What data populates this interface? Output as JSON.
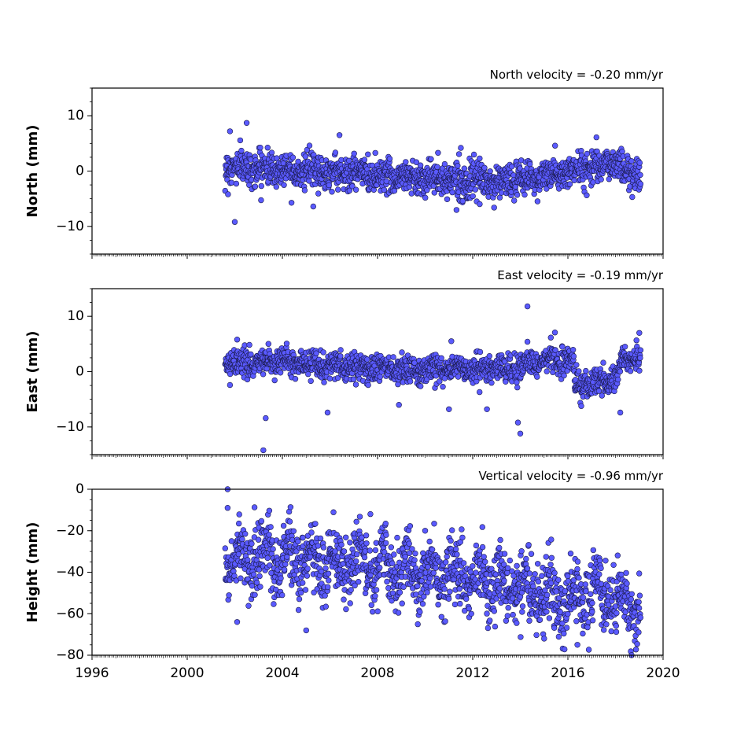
{
  "chart_data": [
    {
      "type": "scatter",
      "title": "North velocity = -0.20 mm/yr",
      "ylabel": "North (mm)",
      "xlim": [
        1996,
        2020
      ],
      "ylim": [
        -15,
        15
      ],
      "yticks": [
        10,
        0,
        -10
      ],
      "ytick_labels": [
        "10",
        "0",
        "−10"
      ],
      "start_year": 2001.6,
      "end_year": 2019.05,
      "series": [
        {
          "trend": [
            [
              2001.6,
              0.8
            ],
            [
              2004,
              0.4
            ],
            [
              2007,
              -0.4
            ],
            [
              2010,
              -1.2
            ],
            [
              2012,
              -1.8
            ],
            [
              2013,
              -2.0
            ],
            [
              2015,
              -1.0
            ],
            [
              2016.3,
              0.0
            ],
            [
              2017,
              1.0
            ],
            [
              2018,
              1.6
            ],
            [
              2018.5,
              0.0
            ],
            [
              2019.05,
              -0.8
            ]
          ],
          "spread": 1.5,
          "outliers": [
            [
              2002.0,
              -9.2
            ],
            [
              2002.5,
              8.7
            ],
            [
              2001.8,
              7.2
            ],
            [
              2006.4,
              6.5
            ],
            [
              2005.3,
              -6.4
            ],
            [
              2012.9,
              -6.6
            ],
            [
              2017.2,
              6.1
            ],
            [
              2011.5,
              4.2
            ]
          ]
        }
      ]
    },
    {
      "type": "scatter",
      "title": "East velocity = -0.19 mm/yr",
      "ylabel": "East (mm)",
      "xlim": [
        1996,
        2020
      ],
      "ylim": [
        -15,
        15
      ],
      "yticks": [
        10,
        0,
        -10
      ],
      "ytick_labels": [
        "10",
        "0",
        "−10"
      ],
      "start_year": 2001.6,
      "end_year": 2019.05,
      "series": [
        {
          "trend": [
            [
              2001.6,
              1.6
            ],
            [
              2004,
              1.8
            ],
            [
              2006,
              1.2
            ],
            [
              2008,
              0.6
            ],
            [
              2010,
              0.4
            ],
            [
              2012,
              0.5
            ],
            [
              2014,
              0.8
            ],
            [
              2015,
              2.2
            ],
            [
              2016.2,
              2.0
            ],
            [
              2016.3,
              -2.4
            ],
            [
              2017,
              -2.0
            ],
            [
              2018.1,
              -1.4
            ],
            [
              2018.2,
              2.0
            ],
            [
              2019.05,
              2.5
            ]
          ],
          "spread": 1.2,
          "outliers": [
            [
              2003.2,
              -14.2
            ],
            [
              2014.3,
              11.8
            ],
            [
              2014.0,
              -11.2
            ],
            [
              2003.3,
              -8.4
            ],
            [
              2005.9,
              -7.4
            ],
            [
              2011.0,
              -6.8
            ],
            [
              2018.2,
              -7.4
            ],
            [
              2013.9,
              -9.2
            ],
            [
              2008.9,
              -6.0
            ],
            [
              2012.6,
              -6.8
            ],
            [
              2011.1,
              5.5
            ],
            [
              2014.3,
              5.4
            ],
            [
              2002.1,
              5.8
            ],
            [
              2019.0,
              7.0
            ]
          ]
        }
      ]
    },
    {
      "type": "scatter",
      "title": "Vertical velocity = -0.96 mm/yr",
      "ylabel": "Height (mm)",
      "xlim": [
        1996,
        2020
      ],
      "ylim": [
        -80,
        0
      ],
      "yticks": [
        0,
        -20,
        -40,
        -60,
        -80
      ],
      "ytick_labels": [
        "0",
        "−20",
        "−40",
        "−60",
        "−80"
      ],
      "xticks": [
        1996,
        2000,
        2004,
        2008,
        2012,
        2016,
        2020
      ],
      "xtick_labels": [
        "1996",
        "2000",
        "2004",
        "2008",
        "2012",
        "2016",
        "2020"
      ],
      "start_year": 2001.6,
      "end_year": 2019.05,
      "series": [
        {
          "trend": [
            [
              2001.6,
              -33
            ],
            [
              2004,
              -33
            ],
            [
              2006,
              -35
            ],
            [
              2008,
              -37
            ],
            [
              2010,
              -41
            ],
            [
              2012,
              -43
            ],
            [
              2014,
              -47
            ],
            [
              2016,
              -54
            ],
            [
              2017,
              -50
            ],
            [
              2018,
              -52
            ],
            [
              2019.05,
              -60
            ]
          ],
          "spread": 8,
          "outliers": [
            [
              2001.7,
              0
            ],
            [
              2001.7,
              -9
            ],
            [
              2007.7,
              -12
            ],
            [
              2005.0,
              -68
            ],
            [
              2002.1,
              -64
            ],
            [
              2016.4,
              -75
            ],
            [
              2015.0,
              -72
            ],
            [
              2010.0,
              -20
            ]
          ]
        }
      ]
    }
  ],
  "colors": {
    "marker_fill": "#5a5aff",
    "marker_edge": "#1a1a4a"
  }
}
